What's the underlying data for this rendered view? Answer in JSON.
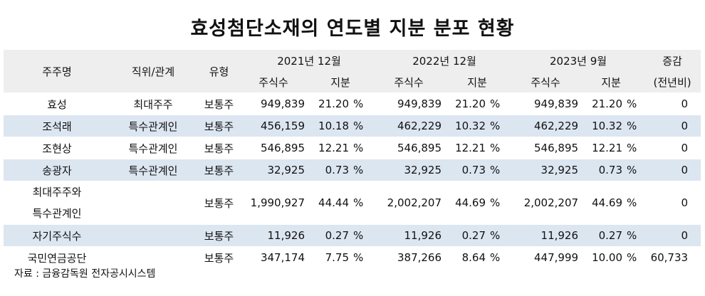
{
  "title": "효성첨단소재의 연도별 지분 분포 현황",
  "headers": {
    "shareholder": "주주명",
    "relation": "직위/관계",
    "type": "유형",
    "periods": [
      "2021년 12월",
      "2022년 12월",
      "2023년 9월"
    ],
    "shares": "주식수",
    "stake": "지분",
    "change_line1": "증감",
    "change_line2": "(전년비)"
  },
  "pct_unit": "%",
  "rows": [
    {
      "name": "효성",
      "relation": "최대주주",
      "type": "보통주",
      "s2021": "949,839",
      "p2021": "21.20",
      "s2022": "949,839",
      "p2022": "21.20",
      "s2023": "949,839",
      "p2023": "21.20",
      "change": "0",
      "shade": false
    },
    {
      "name": "조석래",
      "relation": "특수관계인",
      "type": "보통주",
      "s2021": "456,159",
      "p2021": "10.18",
      "s2022": "462,229",
      "p2022": "10.32",
      "s2023": "462,229",
      "p2023": "10.32",
      "change": "0",
      "shade": true
    },
    {
      "name": "조현상",
      "relation": "특수관계인",
      "type": "보통주",
      "s2021": "546,895",
      "p2021": "12.21",
      "s2022": "546,895",
      "p2022": "12.21",
      "s2023": "546,895",
      "p2023": "12.21",
      "change": "0",
      "shade": false
    },
    {
      "name": "송광자",
      "relation": "특수관계인",
      "type": "보통주",
      "s2021": "32,925",
      "p2021": "0.73",
      "s2022": "32,925",
      "p2022": "0.73",
      "s2023": "32,925",
      "p2023": "0.73",
      "change": "0",
      "shade": true
    },
    {
      "name": "최대주주와",
      "name2": "특수관계인",
      "relation": "",
      "type": "보통주",
      "s2021": "1,990,927",
      "p2021": "44.44",
      "s2022": "2,002,207",
      "p2022": "44.69",
      "s2023": "2,002,207",
      "p2023": "44.69",
      "change": "0",
      "shade": false
    },
    {
      "name": "자기주식수",
      "relation": "",
      "type": "보통주",
      "s2021": "11,926",
      "p2021": "0.27",
      "s2022": "11,926",
      "p2022": "0.27",
      "s2023": "11,926",
      "p2023": "0.27",
      "change": "0",
      "shade": true
    },
    {
      "name": "국민연금공단",
      "relation": "",
      "type": "보통주",
      "s2021": "347,174",
      "p2021": "7.75",
      "s2022": "387,266",
      "p2022": "8.64",
      "s2023": "447,999",
      "p2023": "10.00",
      "change": "60,733",
      "shade": false
    }
  ],
  "source": "자료 : 금융감독원 전자공시시스템"
}
